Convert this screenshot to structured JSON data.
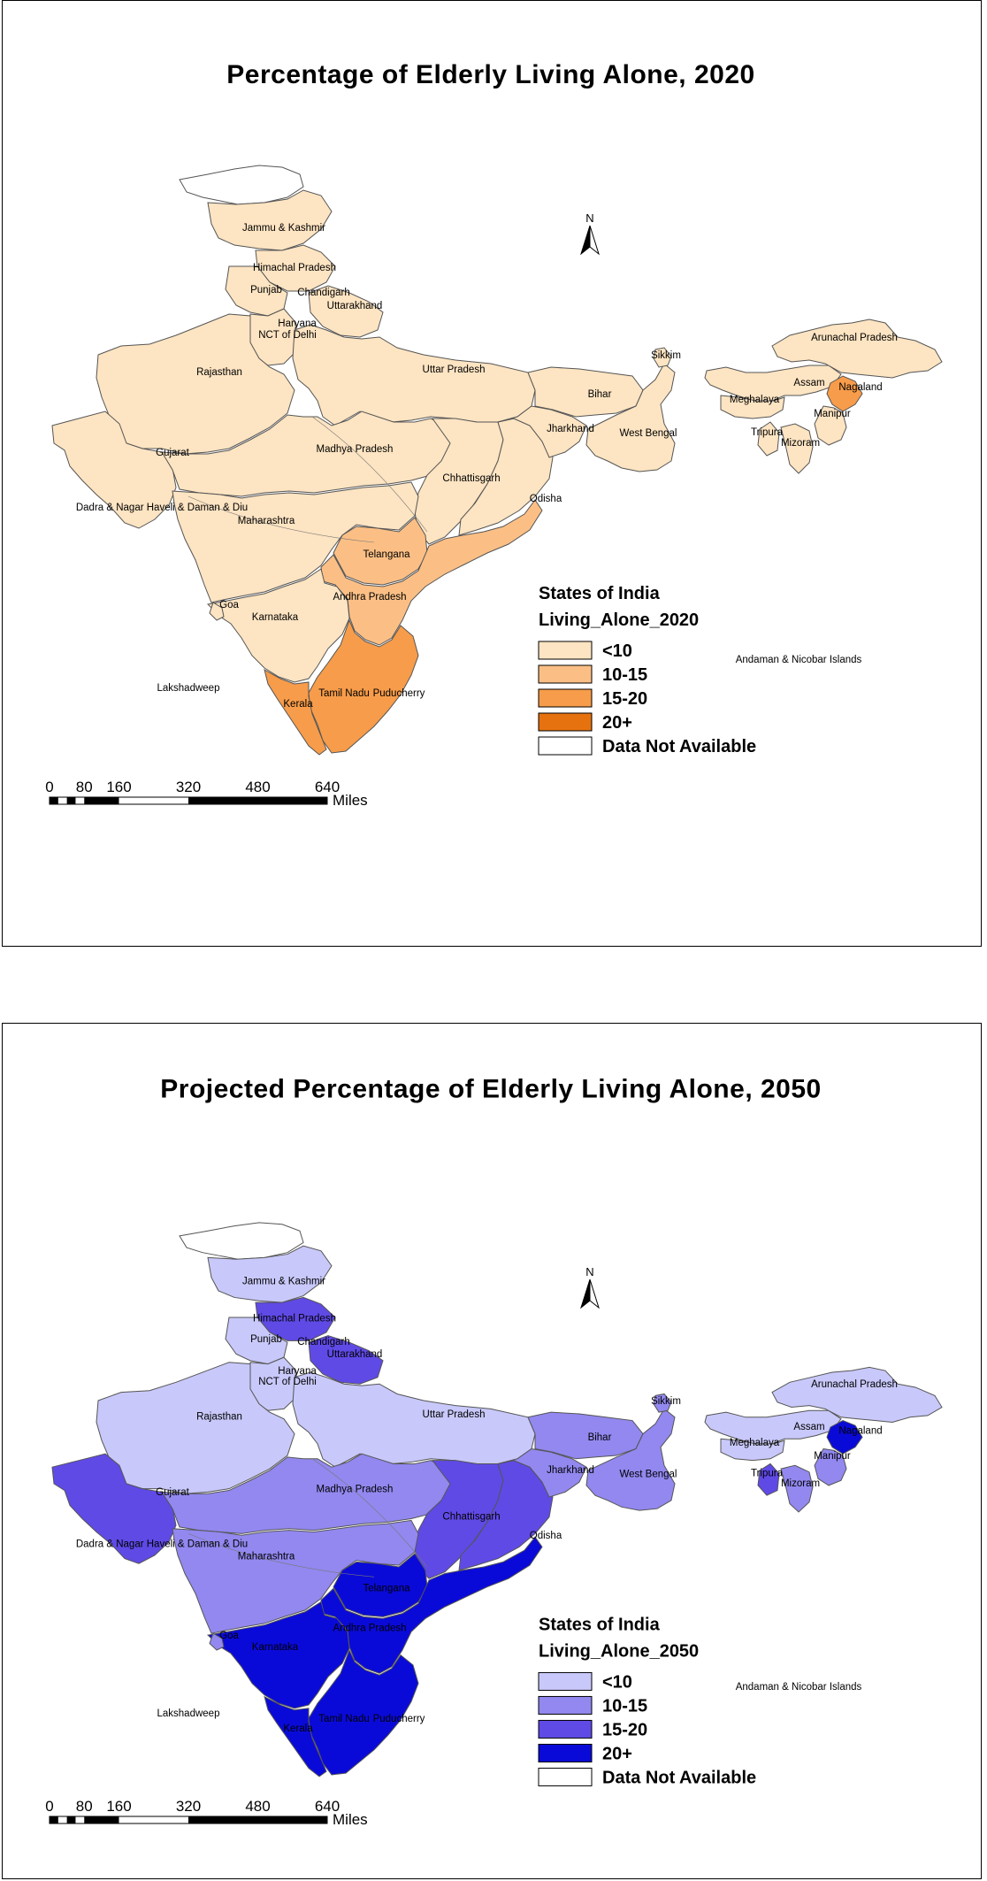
{
  "maps": [
    {
      "title": "Percentage of Elderly Living Alone, 2020",
      "legend": {
        "title": "States of India",
        "field": "Living_Alone_2020",
        "classes": [
          {
            "label": "<10",
            "color": "#fde4c2"
          },
          {
            "label": "10-15",
            "color": "#fbbf85"
          },
          {
            "label": "15-20",
            "color": "#f79c4a"
          },
          {
            "label": "20+",
            "color": "#e6720f"
          },
          {
            "label": "Data Not Available",
            "color": "#ffffff"
          }
        ]
      },
      "state_class": {
        "jk": "<10",
        "hp": "<10",
        "pb": "<10",
        "uk": "<10",
        "hr": "<10",
        "up": "<10",
        "rj": "<10",
        "gj": "<10",
        "mp": "<10",
        "cg": "<10",
        "mh": "<10",
        "ka": "<10",
        "ga": "<10",
        "tg": "10-15",
        "ap": "10-15",
        "tn": "15-20",
        "kl": "15-20",
        "od": "<10",
        "jh": "<10",
        "br": "<10",
        "wb": "<10",
        "sk": "<10",
        "as": "<10",
        "ar": "<10",
        "nl": "15-20",
        "mn": "<10",
        "ml": "<10",
        "tr": "<10",
        "mz": "<10",
        "aksai": "Data Not Available"
      }
    },
    {
      "title": "Projected Percentage of Elderly Living Alone, 2050",
      "legend": {
        "title": "States of India",
        "field": "Living_Alone_2050",
        "classes": [
          {
            "label": "<10",
            "color": "#c8c8fa"
          },
          {
            "label": "10-15",
            "color": "#9288ef"
          },
          {
            "label": "15-20",
            "color": "#5f4ae6"
          },
          {
            "label": "20+",
            "color": "#0a0ad8"
          },
          {
            "label": "Data Not Available",
            "color": "#ffffff"
          }
        ]
      },
      "state_class": {
        "jk": "<10",
        "hp": "15-20",
        "pb": "<10",
        "uk": "15-20",
        "hr": "<10",
        "up": "<10",
        "rj": "<10",
        "gj": "15-20",
        "mp": "10-15",
        "cg": "15-20",
        "mh": "10-15",
        "ka": "20+",
        "ga": "10-15",
        "tg": "20+",
        "ap": "20+",
        "tn": "20+",
        "kl": "20+",
        "od": "15-20",
        "jh": "10-15",
        "br": "10-15",
        "wb": "10-15",
        "sk": "10-15",
        "as": "<10",
        "ar": "<10",
        "nl": "20+",
        "mn": "10-15",
        "ml": "<10",
        "tr": "15-20",
        "mz": "10-15",
        "aksai": "Data Not Available"
      }
    }
  ],
  "labels": {
    "jk": "Jammu & Kashmir",
    "hp": "Himachal Pradesh",
    "pb": "Punjab",
    "ch": "Chandigarh",
    "uk": "Uttarakhand",
    "hr": "Haryana",
    "dl": "NCT of Delhi",
    "rj": "Rajasthan",
    "up": "Uttar Pradesh",
    "sk": "Sikkim",
    "ar": "Arunachal Pradesh",
    "as": "Assam",
    "nl": "Nagaland",
    "ml": "Meghalaya",
    "br": "Bihar",
    "mn": "Manipur",
    "jh": "Jharkhand",
    "wb": "West Bengal",
    "tr": "Tripura",
    "mz": "Mizoram",
    "gj": "Gujarat",
    "mp": "Madhya Pradesh",
    "cg": "Chhattisgarh",
    "dnh": "Dadra & Nagar Haveli & Daman & Diu",
    "od": "Odisha",
    "mh": "Maharashtra",
    "tg": "Telangana",
    "ap": "Andhra Pradesh",
    "ga": "Goa",
    "ka": "Karnataka",
    "an": "Andaman & Nicobar Islands",
    "ld": "Lakshadweep",
    "tn": "Tamil Nadu",
    "py": "Puducherry",
    "kl": "Kerala"
  },
  "north_arrow": "N",
  "scale_bar": {
    "ticks": [
      "0",
      "80",
      "160",
      "320",
      "480",
      "640"
    ],
    "unit": "Miles"
  }
}
